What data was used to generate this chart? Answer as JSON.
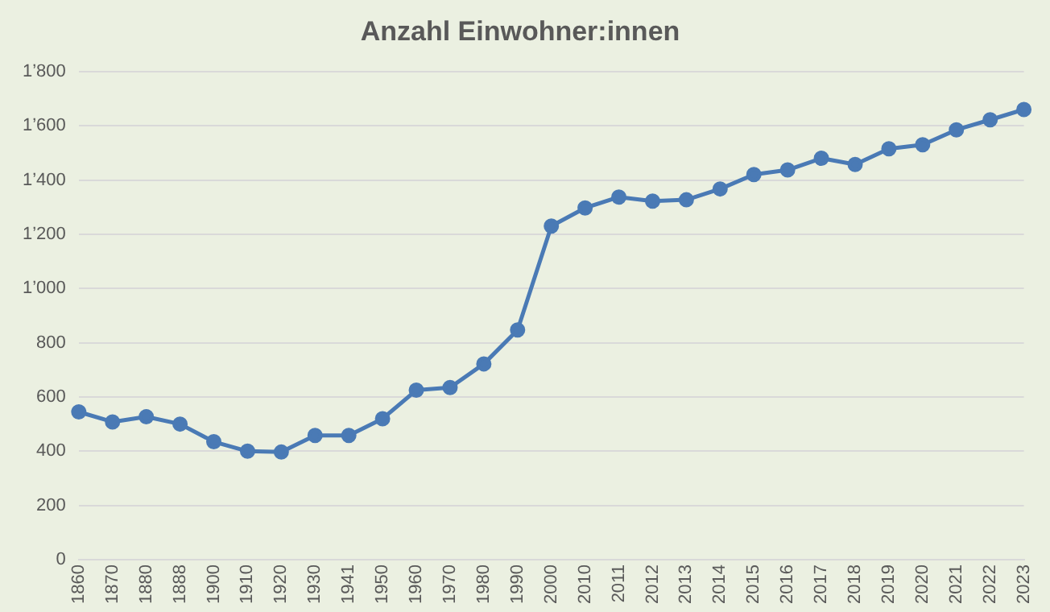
{
  "chart_data": {
    "type": "line",
    "title": "Anzahl Einwohner:innen",
    "categories": [
      "1860",
      "1870",
      "1880",
      "1888",
      "1900",
      "1910",
      "1920",
      "1930",
      "1941",
      "1950",
      "1960",
      "1970",
      "1980",
      "1990",
      "2000",
      "2010",
      "2011",
      "2012",
      "2013",
      "2014",
      "2015",
      "2016",
      "2017",
      "2018",
      "2019",
      "2020",
      "2021",
      "2022",
      "2023"
    ],
    "series": [
      {
        "color": "#4a7ab5",
        "values": [
          545,
          508,
          527,
          500,
          435,
          400,
          397,
          458,
          458,
          520,
          625,
          635,
          722,
          847,
          1230,
          1297,
          1337,
          1322,
          1327,
          1367,
          1420,
          1437,
          1480,
          1457,
          1515,
          1530,
          1585,
          1622,
          1660
        ]
      }
    ],
    "ylim": [
      0,
      1800
    ],
    "yticks": [
      0,
      200,
      400,
      600,
      800,
      {
        "value": 1000,
        "label": "1’000"
      },
      {
        "value": 1200,
        "label": "1’200"
      },
      {
        "value": 1400,
        "label": "1’400"
      },
      {
        "value": 1600,
        "label": "1’600"
      },
      {
        "value": 1800,
        "label": "1’800"
      }
    ],
    "grid": "y",
    "marker": "circle",
    "line_style": "solid",
    "legend": false
  }
}
